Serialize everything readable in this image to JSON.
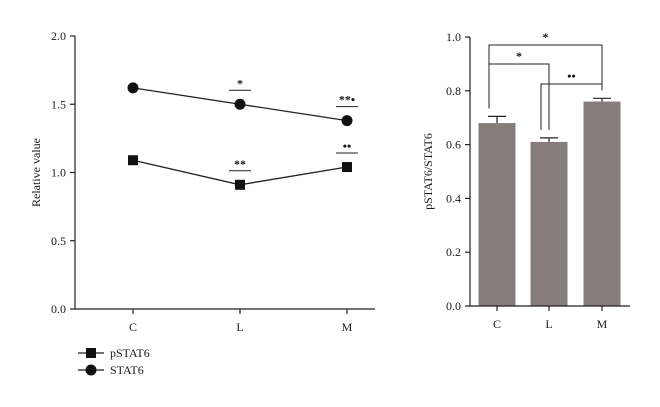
{
  "chart_data": [
    {
      "type": "line",
      "ylabel": "Relative value",
      "xlabel": "",
      "categories": [
        "C",
        "L",
        "M"
      ],
      "ylim": [
        0,
        2.0
      ],
      "yticks": [
        "0.0",
        "0.5",
        "1.0",
        "1.5",
        "2.0"
      ],
      "grid": false,
      "legend_placement": "bottom-left",
      "series": [
        {
          "name": "pSTAT6",
          "marker": "square",
          "values": [
            1.09,
            0.91,
            1.04
          ]
        },
        {
          "name": "STAT6",
          "marker": "circle",
          "values": [
            1.62,
            1.5,
            1.38
          ]
        }
      ],
      "significance": [
        {
          "series": "STAT6",
          "category": "L",
          "label": "*"
        },
        {
          "series": "STAT6",
          "category": "M",
          "label": "**•"
        },
        {
          "series": "pSTAT6",
          "category": "L",
          "label": "**"
        },
        {
          "series": "pSTAT6",
          "category": "M",
          "label": "••"
        }
      ]
    },
    {
      "type": "bar",
      "ylabel": "pSTAT6/STAT6",
      "xlabel": "",
      "categories": [
        "C",
        "L",
        "M"
      ],
      "values": [
        0.68,
        0.61,
        0.76
      ],
      "errors": [
        0.025,
        0.015,
        0.012
      ],
      "ylim": [
        0,
        1.0
      ],
      "yticks": [
        "0.0",
        "0.2",
        "0.4",
        "0.6",
        "0.8",
        "1.0"
      ],
      "bar_color": "#877c7c",
      "grid": false,
      "brackets": [
        {
          "from": "C",
          "to": "M",
          "label": "*"
        },
        {
          "from": "C",
          "to": "L",
          "label": "*"
        },
        {
          "from": "L",
          "to": "M",
          "label": "••"
        }
      ]
    }
  ]
}
